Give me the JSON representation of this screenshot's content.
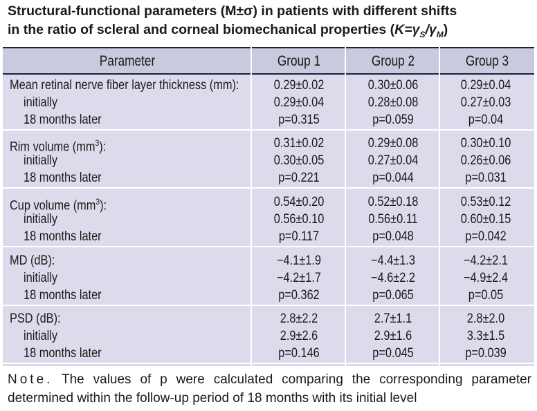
{
  "title": {
    "line1": "Structural-functional parameters (M±σ) in patients with different shifts",
    "line2_prefix": "in the ratio of scleral and corneal biomechanical properties (",
    "k": "K",
    "eq": "=γ",
    "s": "S",
    "slash": "/γ",
    "m": "M",
    "close": ")"
  },
  "table": {
    "headers": [
      "Parameter",
      "Group 1",
      "Group 2",
      "Group 3"
    ],
    "groups": [
      {
        "param": "Mean retinal nerve fiber layer thickness (mm):",
        "sup": "",
        "param_tail": "",
        "rows": [
          {
            "label": "",
            "values": [
              "0.29±0.02",
              "0.30±0.06",
              "0.29±0.04"
            ]
          },
          {
            "label": "initially",
            "values": [
              "0.29±0.04",
              "0.28±0.08",
              "0.27±0.03"
            ]
          },
          {
            "label": "18 months later",
            "values": [
              "p=0.315",
              "p=0.059",
              "p=0.04"
            ]
          }
        ]
      },
      {
        "param": "Rim volume (mm",
        "sup": "3",
        "param_tail": "):",
        "rows": [
          {
            "label": "",
            "values": [
              "0.31±0.02",
              "0.29±0.08",
              "0.30±0.10"
            ]
          },
          {
            "label": "initially",
            "values": [
              "0.30±0.05",
              "0.27±0.04",
              "0.26±0.06"
            ]
          },
          {
            "label": "18 months later",
            "values": [
              "p=0.221",
              "p=0.044",
              "p=0.031"
            ]
          }
        ]
      },
      {
        "param": "Cup volume (mm",
        "sup": "3",
        "param_tail": "):",
        "rows": [
          {
            "label": "",
            "values": [
              "0.54±0.20",
              "0.52±0.18",
              "0.53±0.12"
            ]
          },
          {
            "label": "initially",
            "values": [
              "0.56±0.10",
              "0.56±0.11",
              "0.60±0.15"
            ]
          },
          {
            "label": "18 months later",
            "values": [
              "p=0.117",
              "p=0.048",
              "p=0.042"
            ]
          }
        ]
      },
      {
        "param": "MD (dB):",
        "sup": "",
        "param_tail": "",
        "rows": [
          {
            "label": "",
            "values": [
              "−4.1±1.9",
              "−4.4±1.3",
              "−4.2±2.1"
            ]
          },
          {
            "label": "initially",
            "values": [
              "−4.2±1.7",
              "−4.6±2.2",
              "−4.9±2.4"
            ]
          },
          {
            "label": "18 months later",
            "values": [
              "p=0.362",
              "p=0.065",
              "p=0.05"
            ]
          }
        ]
      },
      {
        "param": "PSD (dB):",
        "sup": "",
        "param_tail": "",
        "rows": [
          {
            "label": "",
            "values": [
              "2.8±2.2",
              "2.7±1.1",
              "2.8±2.0"
            ]
          },
          {
            "label": "initially",
            "values": [
              "2.9±2.6",
              "2.9±1.6",
              "3.3±1.5"
            ]
          },
          {
            "label": "18 months later",
            "values": [
              "p=0.146",
              "p=0.045",
              "p=0.039"
            ]
          }
        ]
      }
    ]
  },
  "note": {
    "label": "Note.",
    "line1": "The values of p were calculated comparing the corresponding parameter",
    "line2": "determined within the follow-up period of 18 months with its initial level"
  }
}
